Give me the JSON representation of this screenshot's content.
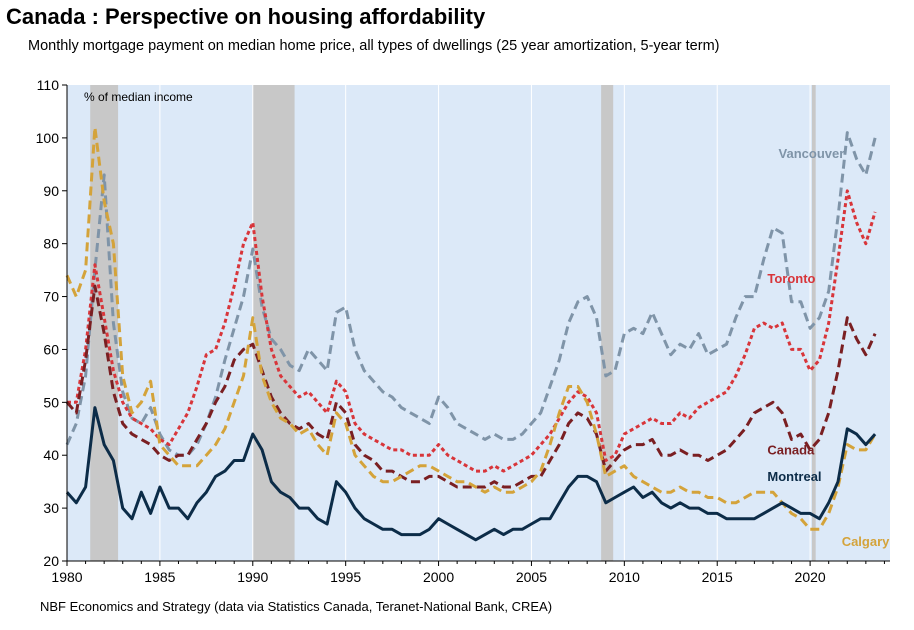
{
  "header": {
    "title": "Canada : Perspective on housing affordability",
    "subtitle": "Monthly mortgage payment on median home price, all types of dwellings (25 year amortization, 5-year term)"
  },
  "footer": {
    "source": "NBF Economics and Strategy (data via Statistics Canada, Teranet-National Bank, CREA)"
  },
  "chart_data": {
    "type": "line",
    "title": "Canada : Perspective on housing affordability",
    "ylabel": "% of median income",
    "xlim": [
      1980,
      2024.3
    ],
    "ylim": [
      20,
      110
    ],
    "xticks": [
      1980,
      1985,
      1990,
      1995,
      2000,
      2005,
      2010,
      2015,
      2020
    ],
    "xtick_labels": [
      "1980",
      "1985",
      "1990",
      "1995",
      "2000",
      "2005",
      "2010",
      "2015",
      "2020"
    ],
    "yticks": [
      20,
      30,
      40,
      50,
      60,
      70,
      80,
      90,
      100,
      110
    ],
    "ytick_labels": [
      "20",
      "30",
      "40",
      "50",
      "60",
      "70",
      "80",
      "90",
      "100",
      "110"
    ],
    "grid": "vertical",
    "background_color": "#dce9f8",
    "recessions": [
      [
        1981.25,
        1982.75
      ],
      [
        1990.0,
        1992.25
      ],
      [
        2008.75,
        2009.4
      ],
      [
        2020.1,
        2020.3
      ]
    ],
    "recession_color": "#c8c8c8",
    "series": [
      {
        "name": "Vancouver",
        "color": "#7f94a8",
        "style": "dashed",
        "x": [
          1980,
          1980.5,
          1981,
          1981.5,
          1982,
          1982.5,
          1983,
          1983.5,
          1984,
          1984.5,
          1985,
          1985.5,
          1986,
          1986.5,
          1987,
          1987.5,
          1988,
          1988.5,
          1989,
          1989.5,
          1990,
          1990.5,
          1991,
          1991.5,
          1992,
          1992.5,
          1993,
          1993.5,
          1994,
          1994.5,
          1995,
          1995.5,
          1996,
          1996.5,
          1997,
          1997.5,
          1998,
          1998.5,
          1999,
          1999.5,
          2000,
          2000.5,
          2001,
          2001.5,
          2002,
          2002.5,
          2003,
          2003.5,
          2004,
          2004.5,
          2005,
          2005.5,
          2006,
          2006.5,
          2007,
          2007.5,
          2008,
          2008.5,
          2009,
          2009.5,
          2010,
          2010.5,
          2011,
          2011.5,
          2012,
          2012.5,
          2013,
          2013.5,
          2014,
          2014.5,
          2015,
          2015.5,
          2016,
          2016.5,
          2017,
          2017.5,
          2018,
          2018.5,
          2019,
          2019.5,
          2020,
          2020.5,
          2021,
          2021.5,
          2022,
          2022.5,
          2023,
          2023.5
        ],
        "values": [
          42,
          46,
          55,
          75,
          93,
          65,
          52,
          47,
          46,
          49,
          44,
          41,
          40,
          40,
          42,
          46,
          51,
          58,
          64,
          70,
          79,
          68,
          62,
          60,
          57,
          56,
          60,
          58,
          56,
          67,
          68,
          60,
          56,
          54,
          52,
          51,
          49,
          48,
          47,
          46,
          51,
          49,
          46,
          45,
          44,
          43,
          44,
          43,
          43,
          44,
          46,
          48,
          53,
          58,
          65,
          69,
          70,
          66,
          55,
          56,
          63,
          64,
          63,
          67,
          63,
          59,
          61,
          60,
          63,
          59,
          60,
          61,
          66,
          70,
          70,
          77,
          83,
          82,
          69,
          69,
          64,
          66,
          71,
          85,
          101,
          96,
          93,
          100
        ]
      },
      {
        "name": "Toronto",
        "color": "#d8353a",
        "style": "dotted",
        "x": [
          1980,
          1980.5,
          1981,
          1981.5,
          1982,
          1982.5,
          1983,
          1983.5,
          1984,
          1984.5,
          1985,
          1985.5,
          1986,
          1986.5,
          1987,
          1987.5,
          1988,
          1988.5,
          1989,
          1989.5,
          1990,
          1990.5,
          1991,
          1991.5,
          1992,
          1992.5,
          1993,
          1993.5,
          1994,
          1994.5,
          1995,
          1995.5,
          1996,
          1996.5,
          1997,
          1997.5,
          1998,
          1998.5,
          1999,
          1999.5,
          2000,
          2000.5,
          2001,
          2001.5,
          2002,
          2002.5,
          2003,
          2003.5,
          2004,
          2004.5,
          2005,
          2005.5,
          2006,
          2006.5,
          2007,
          2007.5,
          2008,
          2008.5,
          2009,
          2009.5,
          2010,
          2010.5,
          2011,
          2011.5,
          2012,
          2012.5,
          2013,
          2013.5,
          2014,
          2014.5,
          2015,
          2015.5,
          2016,
          2016.5,
          2017,
          2017.5,
          2018,
          2018.5,
          2019,
          2019.5,
          2020,
          2020.5,
          2021,
          2021.5,
          2022,
          2022.5,
          2023,
          2023.5
        ],
        "values": [
          50,
          50,
          60,
          76,
          66,
          56,
          50,
          47,
          46,
          45,
          43,
          42,
          45,
          48,
          53,
          59,
          60,
          65,
          72,
          80,
          84,
          70,
          60,
          55,
          53,
          51,
          52,
          50,
          48,
          54,
          52,
          46,
          44,
          43,
          42,
          41,
          41,
          40,
          40,
          40,
          42,
          40,
          39,
          38,
          37,
          37,
          38,
          37,
          38,
          39,
          40,
          42,
          44,
          47,
          50,
          52,
          51,
          48,
          39,
          40,
          44,
          45,
          46,
          47,
          46,
          46,
          48,
          47,
          49,
          50,
          51,
          52,
          55,
          59,
          64,
          65,
          64,
          65,
          60,
          60,
          56,
          58,
          65,
          77,
          90,
          84,
          80,
          86
        ]
      },
      {
        "name": "Canada",
        "color": "#7a1f22",
        "style": "dashed",
        "x": [
          1980,
          1980.5,
          1981,
          1981.5,
          1982,
          1982.5,
          1983,
          1983.5,
          1984,
          1984.5,
          1985,
          1985.5,
          1986,
          1986.5,
          1987,
          1987.5,
          1988,
          1988.5,
          1989,
          1989.5,
          1990,
          1990.5,
          1991,
          1991.5,
          1992,
          1992.5,
          1993,
          1993.5,
          1994,
          1994.5,
          1995,
          1995.5,
          1996,
          1996.5,
          1997,
          1997.5,
          1998,
          1998.5,
          1999,
          1999.5,
          2000,
          2000.5,
          2001,
          2001.5,
          2002,
          2002.5,
          2003,
          2003.5,
          2004,
          2004.5,
          2005,
          2005.5,
          2006,
          2006.5,
          2007,
          2007.5,
          2008,
          2008.5,
          2009,
          2009.5,
          2010,
          2010.5,
          2011,
          2011.5,
          2012,
          2012.5,
          2013,
          2013.5,
          2014,
          2014.5,
          2015,
          2015.5,
          2016,
          2016.5,
          2017,
          2017.5,
          2018,
          2018.5,
          2019,
          2019.5,
          2020,
          2020.5,
          2021,
          2021.5,
          2022,
          2022.5,
          2023,
          2023.5
        ],
        "values": [
          50,
          48,
          58,
          72,
          63,
          52,
          46,
          44,
          43,
          42,
          40,
          39,
          40,
          40,
          43,
          46,
          50,
          53,
          58,
          60,
          61,
          56,
          51,
          48,
          46,
          45,
          46,
          44,
          43,
          50,
          48,
          42,
          40,
          39,
          37,
          37,
          36,
          35,
          35,
          36,
          36,
          35,
          34,
          34,
          34,
          34,
          35,
          34,
          34,
          35,
          36,
          36,
          39,
          42,
          46,
          48,
          47,
          44,
          37,
          39,
          41,
          42,
          42,
          43,
          40,
          40,
          41,
          40,
          40,
          39,
          40,
          41,
          43,
          45,
          48,
          49,
          50,
          48,
          43,
          44,
          41,
          43,
          48,
          56,
          66,
          62,
          59,
          63
        ]
      },
      {
        "name": "Calgary",
        "color": "#d4a33a",
        "style": "dashed",
        "x": [
          1980,
          1980.5,
          1981,
          1981.5,
          1982,
          1982.5,
          1983,
          1983.5,
          1984,
          1984.5,
          1985,
          1985.5,
          1986,
          1986.5,
          1987,
          1987.5,
          1988,
          1988.5,
          1989,
          1989.5,
          1990,
          1990.5,
          1991,
          1991.5,
          1992,
          1992.5,
          1993,
          1993.5,
          1994,
          1994.5,
          1995,
          1995.5,
          1996,
          1996.5,
          1997,
          1997.5,
          1998,
          1998.5,
          1999,
          1999.5,
          2000,
          2000.5,
          2001,
          2001.5,
          2002,
          2002.5,
          2003,
          2003.5,
          2004,
          2004.5,
          2005,
          2005.5,
          2006,
          2006.5,
          2007,
          2007.5,
          2008,
          2008.5,
          2009,
          2009.5,
          2010,
          2010.5,
          2011,
          2011.5,
          2012,
          2012.5,
          2013,
          2013.5,
          2014,
          2014.5,
          2015,
          2015.5,
          2016,
          2016.5,
          2017,
          2017.5,
          2018,
          2018.5,
          2019,
          2019.5,
          2020,
          2020.5,
          2021,
          2021.5,
          2022,
          2022.5,
          2023,
          2023.5
        ],
        "values": [
          74,
          70,
          75,
          102,
          88,
          80,
          55,
          48,
          50,
          54,
          42,
          40,
          38,
          38,
          38,
          40,
          42,
          45,
          50,
          55,
          66,
          55,
          50,
          47,
          46,
          44,
          45,
          42,
          40,
          48,
          46,
          40,
          38,
          36,
          35,
          35,
          36,
          37,
          38,
          38,
          37,
          36,
          35,
          35,
          34,
          33,
          34,
          33,
          33,
          34,
          35,
          37,
          42,
          48,
          53,
          53,
          50,
          44,
          36,
          37,
          38,
          36,
          35,
          34,
          33,
          33,
          34,
          33,
          33,
          32,
          32,
          31,
          31,
          32,
          33,
          33,
          33,
          31,
          29,
          28,
          26,
          26,
          29,
          34,
          42,
          41,
          41,
          44
        ]
      },
      {
        "name": "Montreal",
        "color": "#0c2c48",
        "style": "solid",
        "x": [
          1980,
          1980.5,
          1981,
          1981.5,
          1982,
          1982.5,
          1983,
          1983.5,
          1984,
          1984.5,
          1985,
          1985.5,
          1986,
          1986.5,
          1987,
          1987.5,
          1988,
          1988.5,
          1989,
          1989.5,
          1990,
          1990.5,
          1991,
          1991.5,
          1992,
          1992.5,
          1993,
          1993.5,
          1994,
          1994.5,
          1995,
          1995.5,
          1996,
          1996.5,
          1997,
          1997.5,
          1998,
          1998.5,
          1999,
          1999.5,
          2000,
          2000.5,
          2001,
          2001.5,
          2002,
          2002.5,
          2003,
          2003.5,
          2004,
          2004.5,
          2005,
          2005.5,
          2006,
          2006.5,
          2007,
          2007.5,
          2008,
          2008.5,
          2009,
          2009.5,
          2010,
          2010.5,
          2011,
          2011.5,
          2012,
          2012.5,
          2013,
          2013.5,
          2014,
          2014.5,
          2015,
          2015.5,
          2016,
          2016.5,
          2017,
          2017.5,
          2018,
          2018.5,
          2019,
          2019.5,
          2020,
          2020.5,
          2021,
          2021.5,
          2022,
          2022.5,
          2023,
          2023.5
        ],
        "values": [
          33,
          31,
          34,
          49,
          42,
          39,
          30,
          28,
          33,
          29,
          34,
          30,
          30,
          28,
          31,
          33,
          36,
          37,
          39,
          39,
          44,
          41,
          35,
          33,
          32,
          30,
          30,
          28,
          27,
          35,
          33,
          30,
          28,
          27,
          26,
          26,
          25,
          25,
          25,
          26,
          28,
          27,
          26,
          25,
          24,
          25,
          26,
          25,
          26,
          26,
          27,
          28,
          28,
          31,
          34,
          36,
          36,
          35,
          31,
          32,
          33,
          34,
          32,
          33,
          31,
          30,
          31,
          30,
          30,
          29,
          29,
          28,
          28,
          28,
          28,
          29,
          30,
          31,
          30,
          29,
          29,
          28,
          31,
          35,
          45,
          44,
          42,
          44
        ]
      }
    ],
    "annotations": [
      {
        "text": "Vancouver",
        "x": 2018.3,
        "y": 96.2,
        "color": "#7f94a8"
      },
      {
        "text": "Toronto",
        "x": 2017.7,
        "y": 72.6,
        "color": "#d8353a"
      },
      {
        "text": "Canada",
        "x": 2017.7,
        "y": 40.1,
        "color": "#7a1f22"
      },
      {
        "text": "Montreal",
        "x": 2017.7,
        "y": 35.1,
        "color": "#0c2c48"
      },
      {
        "text": "Calgary",
        "x": 2021.7,
        "y": 22.8,
        "color": "#d4a33a"
      }
    ]
  }
}
